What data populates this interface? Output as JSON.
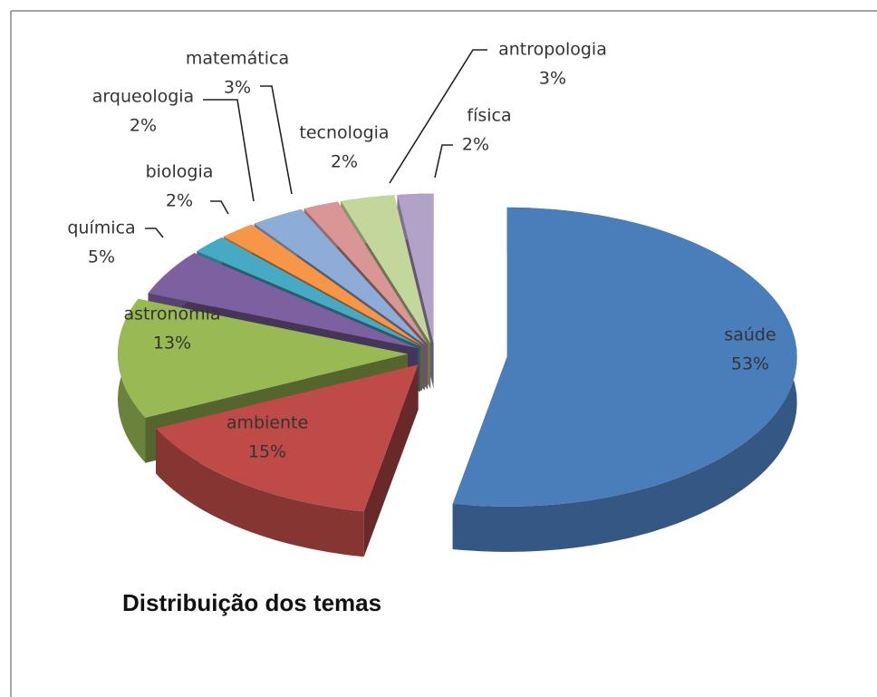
{
  "chart_data": {
    "type": "pie",
    "title": "Distribuição dos temas",
    "categories": [
      "saúde",
      "ambiente",
      "astronomia",
      "química",
      "biologia",
      "arqueologia",
      "matemática",
      "tecnologia",
      "antropologia",
      "física"
    ],
    "values": [
      53,
      15,
      13,
      5,
      2,
      2,
      3,
      2,
      3,
      2
    ],
    "value_labels": [
      "53%",
      "15%",
      "13%",
      "5%",
      "2%",
      "2%",
      "3%",
      "2%",
      "3%",
      "2%"
    ],
    "colors": [
      "#4a7ebb",
      "#be4b48",
      "#98b954",
      "#7d60a0",
      "#46aac5",
      "#f79646",
      "#8eacd8",
      "#d99694",
      "#c3d69b",
      "#b3a2c7"
    ]
  }
}
